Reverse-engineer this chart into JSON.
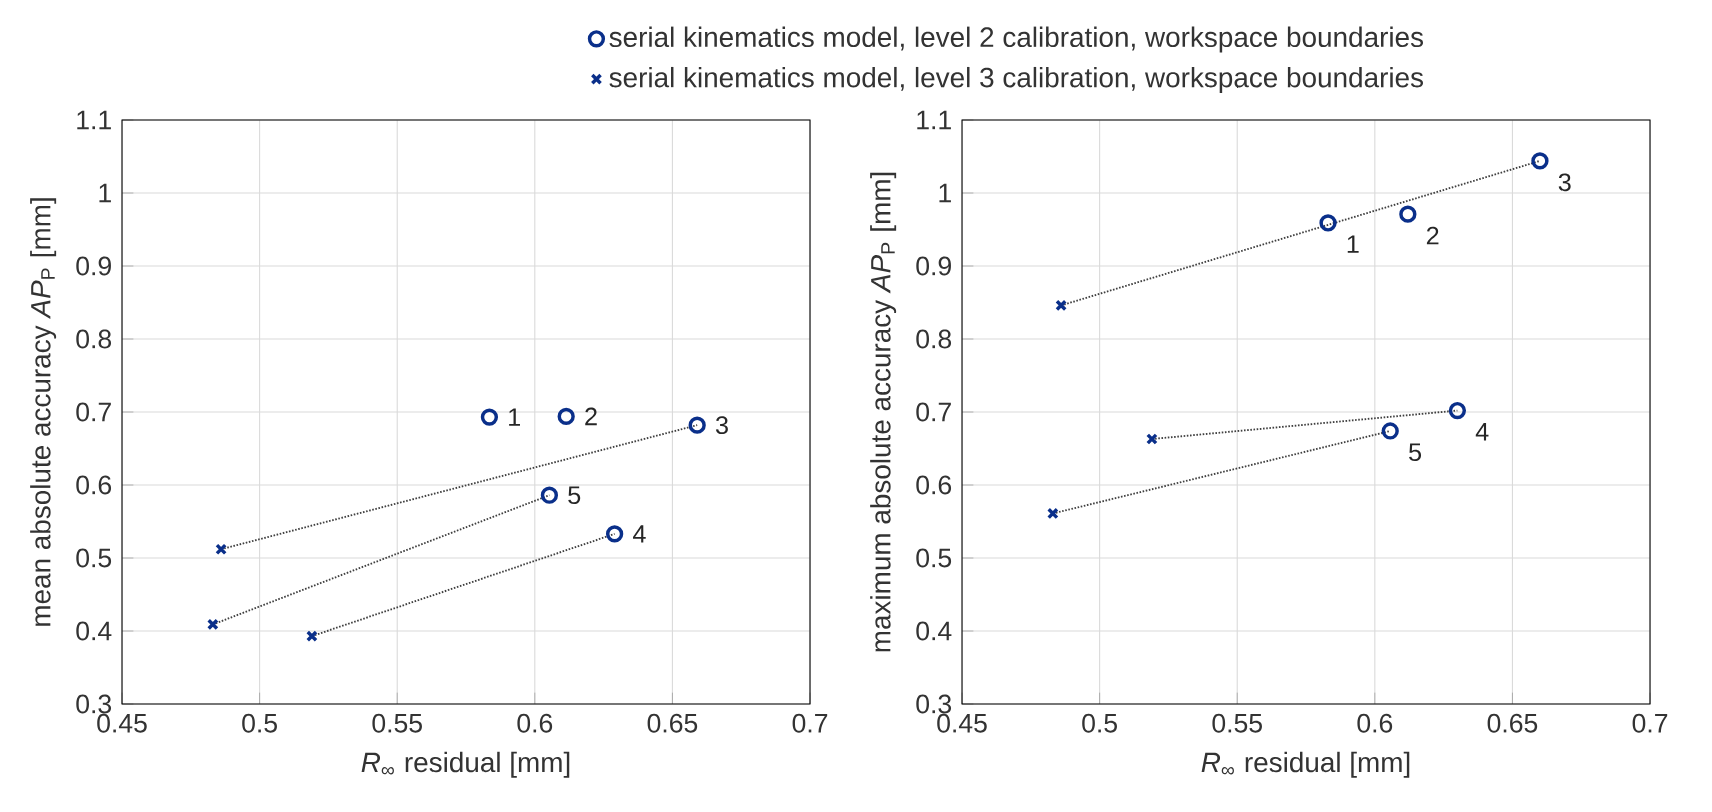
{
  "chart_data": [
    {
      "type": "scatter",
      "xlabel": "*R*$_{∞}$ residual [mm]",
      "ylabel": "mean absolute accuracy *AP*$_{P}$ [mm]",
      "xlim": [
        0.45,
        0.7
      ],
      "ylim": [
        0.3,
        1.1
      ],
      "xticks": [
        0.45,
        0.5,
        0.55,
        0.6,
        0.65,
        0.7
      ],
      "yticks": [
        0.3,
        0.4,
        0.5,
        0.6,
        0.7,
        0.8,
        0.9,
        1,
        1.1
      ],
      "grid": true,
      "legend": "top",
      "series": [
        {
          "name": "serial kinematics model, level 2 calibration, workspace boundaries",
          "marker": "circle",
          "color": "#0a2f8a",
          "x": [
            0.5835,
            0.6114,
            0.659,
            0.629,
            0.6053
          ],
          "values": [
            0.693,
            0.694,
            0.682,
            0.533,
            0.586
          ]
        },
        {
          "name": "serial kinematics model, level 3 calibration, workspace boundaries",
          "marker": "cross",
          "color": "#0a2f8a",
          "x": [
            0.486,
            0.483,
            0.519
          ],
          "values": [
            0.512,
            0.409,
            0.393
          ]
        },
        {
          "type": "line",
          "line_style": "dotted",
          "color": "#404040",
          "x": [
            0.486,
            0.659
          ],
          "values": [
            0.512,
            0.682
          ]
        },
        {
          "type": "line",
          "line_style": "dotted",
          "color": "#404040",
          "x": [
            0.483,
            0.6053
          ],
          "values": [
            0.409,
            0.586
          ]
        },
        {
          "type": "line",
          "line_style": "dotted",
          "color": "#404040",
          "x": [
            0.519,
            0.629
          ],
          "values": [
            0.393,
            0.533
          ]
        }
      ],
      "annotations": [
        {
          "text": "1",
          "x": 0.5835,
          "y": 0.693
        },
        {
          "text": "2",
          "x": 0.6114,
          "y": 0.694
        },
        {
          "text": "3",
          "x": 0.659,
          "y": 0.682
        },
        {
          "text": "4",
          "x": 0.629,
          "y": 0.533
        },
        {
          "text": "5",
          "x": 0.6053,
          "y": 0.586
        }
      ]
    },
    {
      "type": "scatter",
      "xlabel": "*R*$_{∞}$ residual [mm]",
      "ylabel": "maximum absolute accuracy *AP*$_{P}$ [mm]",
      "xlim": [
        0.45,
        0.7
      ],
      "ylim": [
        0.3,
        1.1
      ],
      "xticks": [
        0.45,
        0.5,
        0.55,
        0.6,
        0.65,
        0.7
      ],
      "yticks": [
        0.3,
        0.4,
        0.5,
        0.6,
        0.7,
        0.8,
        0.9,
        1,
        1.1
      ],
      "grid": true,
      "series": [
        {
          "marker": "circle",
          "color": "#0a2f8a",
          "x": [
            0.583,
            0.612,
            0.66,
            0.63,
            0.6056
          ],
          "values": [
            0.959,
            0.971,
            1.044,
            0.702,
            0.674
          ]
        },
        {
          "marker": "cross",
          "color": "#0a2f8a",
          "x": [
            0.486,
            0.483,
            0.519
          ],
          "values": [
            0.846,
            0.561,
            0.663
          ]
        },
        {
          "type": "line",
          "line_style": "dotted",
          "color": "#404040",
          "x": [
            0.486,
            0.66
          ],
          "values": [
            0.846,
            1.044
          ]
        },
        {
          "type": "line",
          "line_style": "dotted",
          "color": "#404040",
          "x": [
            0.483,
            0.6056
          ],
          "values": [
            0.561,
            0.674
          ]
        },
        {
          "type": "line",
          "line_style": "dotted",
          "color": "#404040",
          "x": [
            0.519,
            0.63
          ],
          "values": [
            0.663,
            0.702
          ]
        }
      ],
      "annotations": [
        {
          "text": "1",
          "x": 0.583,
          "y": 0.959
        },
        {
          "text": "2",
          "x": 0.612,
          "y": 0.971
        },
        {
          "text": "3",
          "x": 0.66,
          "y": 1.044
        },
        {
          "text": "4",
          "x": 0.63,
          "y": 0.702
        },
        {
          "text": "5",
          "x": 0.6056,
          "y": 0.674
        }
      ]
    }
  ]
}
